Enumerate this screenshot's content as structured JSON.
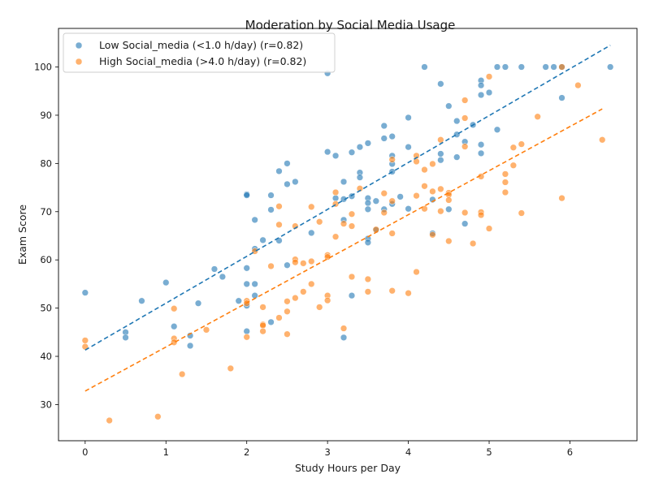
{
  "chart_data": {
    "type": "scatter",
    "title": "Moderation by Social Media Usage",
    "xlabel": "Study Hours per Day",
    "ylabel": "Exam Score",
    "xlim": [
      -0.33,
      6.83
    ],
    "ylim": [
      22.5,
      108
    ],
    "xticks": [
      0,
      1,
      2,
      3,
      4,
      5,
      6
    ],
    "yticks": [
      30,
      40,
      50,
      60,
      70,
      80,
      90,
      100
    ],
    "grid": false,
    "legend_position": "top-left",
    "series": [
      {
        "name": "Low Social_media (<1.0 h/day) (r=0.82)",
        "color": "#1f77b4",
        "trend": {
          "x": [
            0,
            6.5
          ],
          "y": [
            41.3,
            104.5
          ]
        },
        "points": [
          [
            0.0,
            53.2
          ],
          [
            0.5,
            45.0
          ],
          [
            0.5,
            43.9
          ],
          [
            0.7,
            51.5
          ],
          [
            1.0,
            55.3
          ],
          [
            1.1,
            46.2
          ],
          [
            1.3,
            44.3
          ],
          [
            1.3,
            42.2
          ],
          [
            1.4,
            51.0
          ],
          [
            1.6,
            58.1
          ],
          [
            1.7,
            56.5
          ],
          [
            1.9,
            51.5
          ],
          [
            2.0,
            73.6
          ],
          [
            2.0,
            73.4
          ],
          [
            2.0,
            58.3
          ],
          [
            2.0,
            55.0
          ],
          [
            2.0,
            50.5
          ],
          [
            2.0,
            45.2
          ],
          [
            2.1,
            68.3
          ],
          [
            2.1,
            62.3
          ],
          [
            2.1,
            55.0
          ],
          [
            2.1,
            52.6
          ],
          [
            2.2,
            64.1
          ],
          [
            2.3,
            73.4
          ],
          [
            2.3,
            70.4
          ],
          [
            2.3,
            47.1
          ],
          [
            2.4,
            78.4
          ],
          [
            2.4,
            64.0
          ],
          [
            2.5,
            80.0
          ],
          [
            2.5,
            75.7
          ],
          [
            2.5,
            58.9
          ],
          [
            2.6,
            76.2
          ],
          [
            2.8,
            65.6
          ],
          [
            3.0,
            98.7
          ],
          [
            3.0,
            82.4
          ],
          [
            3.1,
            81.6
          ],
          [
            3.1,
            72.8
          ],
          [
            3.2,
            76.2
          ],
          [
            3.2,
            72.6
          ],
          [
            3.2,
            68.3
          ],
          [
            3.2,
            43.9
          ],
          [
            3.3,
            82.3
          ],
          [
            3.3,
            73.2
          ],
          [
            3.3,
            52.6
          ],
          [
            3.4,
            83.4
          ],
          [
            3.4,
            78.1
          ],
          [
            3.4,
            77.1
          ],
          [
            3.5,
            84.2
          ],
          [
            3.5,
            72.8
          ],
          [
            3.5,
            71.8
          ],
          [
            3.5,
            70.5
          ],
          [
            3.5,
            64.4
          ],
          [
            3.5,
            63.6
          ],
          [
            3.6,
            72.2
          ],
          [
            3.6,
            66.2
          ],
          [
            3.7,
            87.8
          ],
          [
            3.7,
            85.2
          ],
          [
            3.7,
            70.5
          ],
          [
            3.8,
            85.6
          ],
          [
            3.8,
            81.6
          ],
          [
            3.8,
            79.9
          ],
          [
            3.8,
            78.3
          ],
          [
            3.8,
            71.6
          ],
          [
            3.9,
            73.1
          ],
          [
            4.0,
            89.5
          ],
          [
            4.0,
            83.4
          ],
          [
            4.0,
            70.6
          ],
          [
            4.2,
            100.0
          ],
          [
            4.3,
            72.5
          ],
          [
            4.3,
            65.5
          ],
          [
            4.4,
            96.5
          ],
          [
            4.4,
            82.0
          ],
          [
            4.4,
            80.7
          ],
          [
            4.5,
            91.9
          ],
          [
            4.5,
            70.5
          ],
          [
            4.6,
            88.8
          ],
          [
            4.6,
            86.0
          ],
          [
            4.6,
            81.3
          ],
          [
            4.7,
            84.5
          ],
          [
            4.7,
            67.5
          ],
          [
            4.8,
            88.0
          ],
          [
            4.9,
            97.2
          ],
          [
            4.9,
            96.2
          ],
          [
            4.9,
            94.2
          ],
          [
            4.9,
            83.9
          ],
          [
            4.9,
            82.1
          ],
          [
            5.0,
            94.7
          ],
          [
            5.1,
            100.0
          ],
          [
            5.1,
            87.0
          ],
          [
            5.2,
            100.0
          ],
          [
            5.4,
            100.0
          ],
          [
            5.7,
            100.0
          ],
          [
            5.8,
            100.0
          ],
          [
            5.9,
            100.0
          ],
          [
            5.9,
            93.6
          ],
          [
            6.5,
            100.0
          ]
        ]
      },
      {
        "name": "High Social_media (>4.0 h/day) (r=0.82)",
        "color": "#ff7f0e",
        "trend": {
          "x": [
            0,
            6.4
          ],
          "y": [
            32.8,
            91.3
          ]
        },
        "points": [
          [
            0.0,
            43.3
          ],
          [
            0.0,
            42.0
          ],
          [
            0.3,
            26.7
          ],
          [
            0.9,
            27.5
          ],
          [
            1.1,
            49.9
          ],
          [
            1.1,
            43.7
          ],
          [
            1.1,
            42.9
          ],
          [
            1.2,
            36.3
          ],
          [
            1.5,
            45.5
          ],
          [
            1.8,
            37.5
          ],
          [
            2.0,
            51.5
          ],
          [
            2.0,
            51.0
          ],
          [
            2.0,
            44.0
          ],
          [
            2.1,
            61.8
          ],
          [
            2.2,
            50.2
          ],
          [
            2.2,
            46.6
          ],
          [
            2.2,
            46.4
          ],
          [
            2.2,
            45.2
          ],
          [
            2.3,
            58.7
          ],
          [
            2.4,
            71.1
          ],
          [
            2.4,
            67.3
          ],
          [
            2.4,
            48.0
          ],
          [
            2.5,
            51.4
          ],
          [
            2.5,
            49.3
          ],
          [
            2.5,
            44.6
          ],
          [
            2.6,
            67.0
          ],
          [
            2.6,
            60.1
          ],
          [
            2.6,
            59.5
          ],
          [
            2.6,
            52.1
          ],
          [
            2.7,
            59.3
          ],
          [
            2.7,
            53.4
          ],
          [
            2.8,
            71.0
          ],
          [
            2.8,
            59.7
          ],
          [
            2.8,
            55.0
          ],
          [
            2.9,
            67.9
          ],
          [
            2.9,
            50.2
          ],
          [
            3.0,
            61.0
          ],
          [
            3.0,
            60.6
          ],
          [
            3.0,
            52.6
          ],
          [
            3.0,
            51.6
          ],
          [
            3.1,
            74.0
          ],
          [
            3.1,
            71.6
          ],
          [
            3.1,
            64.8
          ],
          [
            3.2,
            67.5
          ],
          [
            3.2,
            45.8
          ],
          [
            3.3,
            69.5
          ],
          [
            3.3,
            67.0
          ],
          [
            3.3,
            56.5
          ],
          [
            3.4,
            74.8
          ],
          [
            3.5,
            56.0
          ],
          [
            3.5,
            53.4
          ],
          [
            3.6,
            66.3
          ],
          [
            3.7,
            73.8
          ],
          [
            3.7,
            69.8
          ],
          [
            3.8,
            80.8
          ],
          [
            3.8,
            72.2
          ],
          [
            3.8,
            65.5
          ],
          [
            3.8,
            53.6
          ],
          [
            4.0,
            53.1
          ],
          [
            4.1,
            81.6
          ],
          [
            4.1,
            80.4
          ],
          [
            4.1,
            73.3
          ],
          [
            4.1,
            57.5
          ],
          [
            4.2,
            78.7
          ],
          [
            4.2,
            75.3
          ],
          [
            4.2,
            70.6
          ],
          [
            4.3,
            79.9
          ],
          [
            4.3,
            74.2
          ],
          [
            4.3,
            65.2
          ],
          [
            4.4,
            84.9
          ],
          [
            4.4,
            74.7
          ],
          [
            4.4,
            70.1
          ],
          [
            4.5,
            73.9
          ],
          [
            4.5,
            73.5
          ],
          [
            4.5,
            72.4
          ],
          [
            4.5,
            63.9
          ],
          [
            4.7,
            93.1
          ],
          [
            4.7,
            89.4
          ],
          [
            4.7,
            83.5
          ],
          [
            4.7,
            69.8
          ],
          [
            4.8,
            63.4
          ],
          [
            4.9,
            77.3
          ],
          [
            4.9,
            69.9
          ],
          [
            4.9,
            69.3
          ],
          [
            5.0,
            98.0
          ],
          [
            5.0,
            66.5
          ],
          [
            5.2,
            77.8
          ],
          [
            5.2,
            76.1
          ],
          [
            5.2,
            74.0
          ],
          [
            5.3,
            83.3
          ],
          [
            5.3,
            79.6
          ],
          [
            5.4,
            84.0
          ],
          [
            5.4,
            69.7
          ],
          [
            5.6,
            89.7
          ],
          [
            5.9,
            72.8
          ],
          [
            5.9,
            100.0
          ],
          [
            6.1,
            96.2
          ],
          [
            6.4,
            84.9
          ]
        ]
      }
    ]
  }
}
